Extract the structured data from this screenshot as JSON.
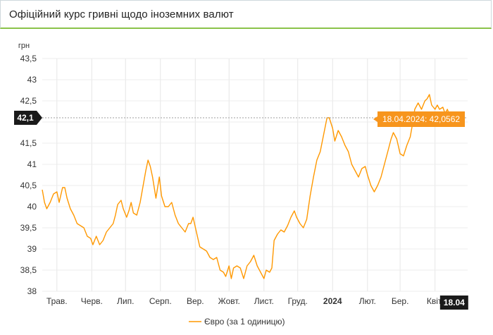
{
  "header": {
    "title": "Офіційний курс гривні щодо іноземних валют"
  },
  "chart_data": {
    "type": "line",
    "ylabel": "грн",
    "ylim": [
      38,
      43.5
    ],
    "yticks": [
      "43,5",
      "43",
      "42,5",
      "42",
      "41,5",
      "41",
      "40,5",
      "40",
      "39,5",
      "39",
      "38,5",
      "38"
    ],
    "x_range": [
      "2023-04-18",
      "2024-04-30"
    ],
    "x_ticks": [
      {
        "date": "2023-05-01",
        "label": "Трав."
      },
      {
        "date": "2023-06-01",
        "label": "Черв."
      },
      {
        "date": "2023-07-01",
        "label": "Лип."
      },
      {
        "date": "2023-08-01",
        "label": "Серп."
      },
      {
        "date": "2023-09-01",
        "label": "Вер."
      },
      {
        "date": "2023-10-01",
        "label": "Жовт."
      },
      {
        "date": "2023-11-01",
        "label": "Лист."
      },
      {
        "date": "2023-12-01",
        "label": "Груд."
      },
      {
        "date": "2024-01-01",
        "label": "2024",
        "bold": true
      },
      {
        "date": "2024-02-01",
        "label": "Лют."
      },
      {
        "date": "2024-03-01",
        "label": "Бер."
      },
      {
        "date": "2024-04-01",
        "label": "Квіт."
      }
    ],
    "series": [
      {
        "name": "Євро (за 1 одиницю)",
        "color": "#ff9800",
        "points": [
          [
            "2023-04-18",
            40.4
          ],
          [
            "2023-04-20",
            40.1
          ],
          [
            "2023-04-22",
            39.95
          ],
          [
            "2023-04-25",
            40.1
          ],
          [
            "2023-04-28",
            40.3
          ],
          [
            "2023-05-01",
            40.35
          ],
          [
            "2023-05-03",
            40.1
          ],
          [
            "2023-05-06",
            40.45
          ],
          [
            "2023-05-08",
            40.45
          ],
          [
            "2023-05-10",
            40.2
          ],
          [
            "2023-05-13",
            39.95
          ],
          [
            "2023-05-16",
            39.8
          ],
          [
            "2023-05-19",
            39.6
          ],
          [
            "2023-05-22",
            39.55
          ],
          [
            "2023-05-25",
            39.5
          ],
          [
            "2023-05-28",
            39.3
          ],
          [
            "2023-05-31",
            39.25
          ],
          [
            "2023-06-02",
            39.1
          ],
          [
            "2023-06-05",
            39.3
          ],
          [
            "2023-06-08",
            39.1
          ],
          [
            "2023-06-11",
            39.2
          ],
          [
            "2023-06-14",
            39.4
          ],
          [
            "2023-06-17",
            39.5
          ],
          [
            "2023-06-20",
            39.6
          ],
          [
            "2023-06-22",
            39.8
          ],
          [
            "2023-06-24",
            40.05
          ],
          [
            "2023-06-27",
            40.15
          ],
          [
            "2023-06-29",
            39.95
          ],
          [
            "2023-07-02",
            39.75
          ],
          [
            "2023-07-04",
            39.9
          ],
          [
            "2023-07-06",
            40.1
          ],
          [
            "2023-07-08",
            39.85
          ],
          [
            "2023-07-11",
            39.8
          ],
          [
            "2023-07-14",
            40.1
          ],
          [
            "2023-07-17",
            40.55
          ],
          [
            "2023-07-19",
            40.85
          ],
          [
            "2023-07-21",
            41.1
          ],
          [
            "2023-07-23",
            40.95
          ],
          [
            "2023-07-25",
            40.7
          ],
          [
            "2023-07-28",
            40.2
          ],
          [
            "2023-07-31",
            40.7
          ],
          [
            "2023-08-02",
            40.25
          ],
          [
            "2023-08-05",
            40.0
          ],
          [
            "2023-08-08",
            40.0
          ],
          [
            "2023-08-11",
            40.1
          ],
          [
            "2023-08-14",
            39.8
          ],
          [
            "2023-08-17",
            39.6
          ],
          [
            "2023-08-20",
            39.5
          ],
          [
            "2023-08-23",
            39.4
          ],
          [
            "2023-08-26",
            39.6
          ],
          [
            "2023-08-28",
            39.6
          ],
          [
            "2023-08-30",
            39.75
          ],
          [
            "2023-09-02",
            39.4
          ],
          [
            "2023-09-05",
            39.05
          ],
          [
            "2023-09-08",
            39.0
          ],
          [
            "2023-09-11",
            38.95
          ],
          [
            "2023-09-14",
            38.8
          ],
          [
            "2023-09-17",
            38.75
          ],
          [
            "2023-09-20",
            38.8
          ],
          [
            "2023-09-23",
            38.5
          ],
          [
            "2023-09-26",
            38.45
          ],
          [
            "2023-09-28",
            38.35
          ],
          [
            "2023-10-01",
            38.6
          ],
          [
            "2023-10-03",
            38.3
          ],
          [
            "2023-10-05",
            38.55
          ],
          [
            "2023-10-08",
            38.6
          ],
          [
            "2023-10-11",
            38.55
          ],
          [
            "2023-10-14",
            38.3
          ],
          [
            "2023-10-17",
            38.6
          ],
          [
            "2023-10-20",
            38.7
          ],
          [
            "2023-10-23",
            38.85
          ],
          [
            "2023-10-26",
            38.6
          ],
          [
            "2023-10-29",
            38.45
          ],
          [
            "2023-11-01",
            38.3
          ],
          [
            "2023-11-03",
            38.5
          ],
          [
            "2023-11-06",
            38.45
          ],
          [
            "2023-11-08",
            38.55
          ],
          [
            "2023-11-10",
            39.2
          ],
          [
            "2023-11-13",
            39.35
          ],
          [
            "2023-11-16",
            39.45
          ],
          [
            "2023-11-19",
            39.4
          ],
          [
            "2023-11-22",
            39.55
          ],
          [
            "2023-11-25",
            39.75
          ],
          [
            "2023-11-28",
            39.9
          ],
          [
            "2023-11-30",
            39.75
          ],
          [
            "2023-12-03",
            39.6
          ],
          [
            "2023-12-06",
            39.5
          ],
          [
            "2023-12-09",
            39.7
          ],
          [
            "2023-12-12",
            40.25
          ],
          [
            "2023-12-15",
            40.7
          ],
          [
            "2023-12-18",
            41.1
          ],
          [
            "2023-12-21",
            41.3
          ],
          [
            "2023-12-24",
            41.7
          ],
          [
            "2023-12-27",
            42.1
          ],
          [
            "2023-12-29",
            42.1
          ],
          [
            "2024-01-01",
            41.85
          ],
          [
            "2024-01-03",
            41.55
          ],
          [
            "2024-01-06",
            41.8
          ],
          [
            "2024-01-09",
            41.65
          ],
          [
            "2024-01-12",
            41.45
          ],
          [
            "2024-01-15",
            41.3
          ],
          [
            "2024-01-18",
            41.0
          ],
          [
            "2024-01-21",
            40.85
          ],
          [
            "2024-01-24",
            40.7
          ],
          [
            "2024-01-27",
            40.9
          ],
          [
            "2024-01-30",
            40.95
          ],
          [
            "2024-02-01",
            40.75
          ],
          [
            "2024-02-04",
            40.5
          ],
          [
            "2024-02-07",
            40.35
          ],
          [
            "2024-02-10",
            40.5
          ],
          [
            "2024-02-13",
            40.7
          ],
          [
            "2024-02-16",
            41.0
          ],
          [
            "2024-02-19",
            41.3
          ],
          [
            "2024-02-22",
            41.6
          ],
          [
            "2024-02-24",
            41.75
          ],
          [
            "2024-02-27",
            41.6
          ],
          [
            "2024-03-01",
            41.25
          ],
          [
            "2024-03-04",
            41.2
          ],
          [
            "2024-03-07",
            41.45
          ],
          [
            "2024-03-10",
            41.65
          ],
          [
            "2024-03-12",
            41.95
          ],
          [
            "2024-03-14",
            42.3
          ],
          [
            "2024-03-17",
            42.45
          ],
          [
            "2024-03-20",
            42.3
          ],
          [
            "2024-03-23",
            42.5
          ],
          [
            "2024-03-25",
            42.55
          ],
          [
            "2024-03-27",
            42.65
          ],
          [
            "2024-03-29",
            42.4
          ],
          [
            "2024-04-01",
            42.3
          ],
          [
            "2024-04-03",
            42.4
          ],
          [
            "2024-04-05",
            42.3
          ],
          [
            "2024-04-08",
            42.35
          ],
          [
            "2024-04-10",
            42.2
          ],
          [
            "2024-04-12",
            42.3
          ],
          [
            "2024-04-15",
            42.1
          ],
          [
            "2024-04-18",
            42.0562
          ]
        ]
      }
    ],
    "crosshair": {
      "y_label": "42,1",
      "x_label": "18.04",
      "tooltip": "18.04.2024: 42,0562"
    },
    "legend": {
      "placement": "bottom-center"
    },
    "grid": {
      "vertical": true,
      "horizontal": true
    }
  }
}
